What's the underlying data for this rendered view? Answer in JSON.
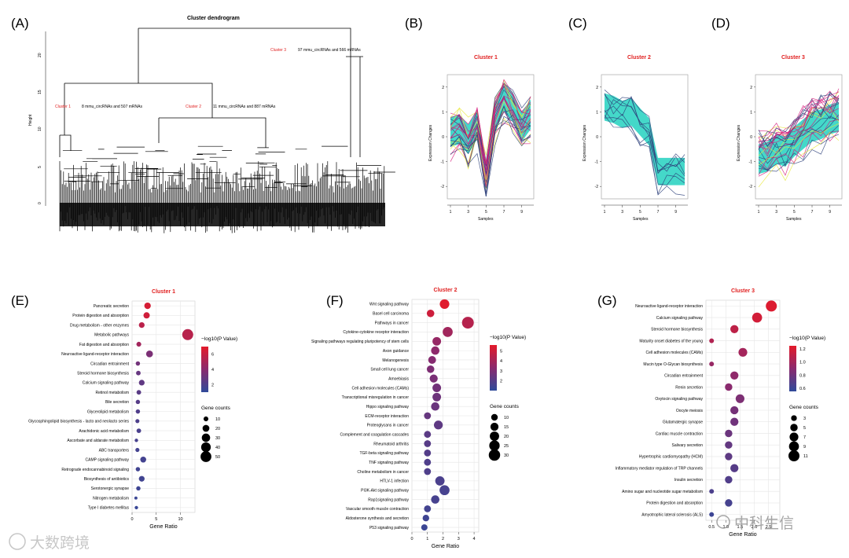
{
  "panel_labels": [
    "(A)",
    "(B)",
    "(C)",
    "(D)",
    "(E)",
    "(F)",
    "(G)"
  ],
  "dendrogram": {
    "title": "Cluster dendrogram",
    "ylabel": "Height",
    "yticks": [
      "0",
      "5",
      "10",
      "15",
      "20"
    ],
    "clusters": [
      {
        "name": "Cluster 1",
        "desc": "8 mmu_circRNAs and 507 mRNAs"
      },
      {
        "name": "Cluster 2",
        "desc": "11 mmu_circRNAs and 887 mRNAs"
      },
      {
        "name": "Cluster 3",
        "desc": "97 mmu_circRNAs and 566 mRNAs"
      }
    ]
  },
  "trend_panels": [
    {
      "title": "Cluster 1",
      "ylabel": "Expression Changes",
      "xlabel": "Samples"
    },
    {
      "title": "Cluster 2",
      "ylabel": "Expression Changes",
      "xlabel": "Samples"
    },
    {
      "title": "Cluster 3",
      "ylabel": "Expression Changes",
      "xlabel": "Samples"
    }
  ],
  "trend_xticks": [
    "1",
    "3",
    "5",
    "7",
    "9"
  ],
  "trend_yticks": [
    "-2",
    "-1",
    "0",
    "1",
    "2"
  ],
  "colors": {
    "cyan": "#3ad6c6",
    "magenta": "#d61a7b",
    "navy": "#2d3f7a",
    "yellow": "#e8e83a",
    "red": "#e01e1e"
  },
  "chart_data": [
    {
      "type": "scatter",
      "title": "Cluster 1",
      "xlabel": "Gene Ratio",
      "xticks": [
        "0",
        "5",
        "10"
      ],
      "xlim": [
        0,
        13
      ],
      "legend_color_title": "−log10(P Value)",
      "color_ticks": [
        "6",
        "4",
        "2"
      ],
      "color_range": [
        1,
        7
      ],
      "legend_size_title": "Gene counts",
      "size_ticks": [
        "10",
        "20",
        "30",
        "40",
        "50"
      ],
      "terms": [
        "Pancreatic secretion",
        "Protein digestion and absorption",
        "Drug metabolism - other enzymes",
        "Metabolic pathways",
        "Fat digestion and absorption",
        "Neuroactive ligand-receptor interaction",
        "Circadian entrainment",
        "Steroid hormone biosynthesis",
        "Calcium signaling pathway",
        "Retinol metabolism",
        "Bile secretion",
        "Glycerolipid metabolism",
        "Glycosphingolipid biosynthesis - lacto and neolacto series",
        "Arachidonic acid metabolism",
        "Ascorbate and aldarate metabolism",
        "ABC transporters",
        "CAMP signaling pathway",
        "Retrograde endocannabinoid signaling",
        "Biosynthesis of antibiotics",
        "Serotonergic synapse",
        "Nitrogen metabolism",
        "Type I diabetes mellitus"
      ],
      "ratio": [
        3.2,
        3.0,
        2.0,
        11.5,
        1.4,
        3.6,
        1.2,
        1.3,
        2.0,
        1.4,
        1.2,
        1.2,
        1.1,
        1.4,
        0.9,
        1.1,
        2.3,
        1.2,
        2.0,
        1.3,
        0.8,
        0.9
      ],
      "neglog10p": [
        6.5,
        6.3,
        5.6,
        5.5,
        4.8,
        3.5,
        3.2,
        2.8,
        2.6,
        2.4,
        2.3,
        2.1,
        2.0,
        1.9,
        1.8,
        1.7,
        1.7,
        1.6,
        1.6,
        1.5,
        1.4,
        1.3
      ],
      "counts": [
        18,
        17,
        14,
        52,
        10,
        20,
        8,
        9,
        14,
        9,
        8,
        8,
        7,
        9,
        5,
        7,
        15,
        8,
        14,
        8,
        4,
        5
      ]
    },
    {
      "type": "scatter",
      "title": "Cluster 2",
      "xlabel": "Gene Ratio",
      "xticks": [
        "0",
        "1",
        "2",
        "3",
        "4"
      ],
      "xlim": [
        0,
        4.3
      ],
      "legend_color_title": "−log10(P Value)",
      "color_ticks": [
        "5",
        "4",
        "3",
        "2"
      ],
      "color_range": [
        1,
        5.6
      ],
      "legend_size_title": "Gene counts",
      "size_ticks": [
        "10",
        "15",
        "20",
        "25",
        "30"
      ],
      "terms": [
        "Wnt signaling pathway",
        "Basel cell carcinoma",
        "Pathways in cancer",
        "Cytokine-cytokine receptor interaction",
        "Signaling pathways regulating pluripotency of stem cells",
        "Axon guidance",
        "Melanogenesis",
        "Small cell lung cancer",
        "Amoebiasis",
        "Cell adhesion molecules (CAMs)",
        "Transcriptional misregulation in cancer",
        "Hippo signaling pathway",
        "ECM-receptor interaction",
        "Proteoglycans in cancer",
        "Complement and coagulation cascades",
        "Rheumatoid arthritis",
        "TGF-beta signaling pathway",
        "TNF signaling pathway",
        "Choline metabolism in cancer",
        "HTLV-1 infection",
        "PI3K-Akt signaling pathway",
        "Rap1signaling pathway",
        "Vascular smooth muscle contraction",
        "Aldosterone synthesis and secretion",
        "P53 signaling pathway"
      ],
      "ratio": [
        2.1,
        1.2,
        3.6,
        2.3,
        1.6,
        1.5,
        1.3,
        1.2,
        1.4,
        1.6,
        1.6,
        1.5,
        1.0,
        1.7,
        1.0,
        1.0,
        1.0,
        1.0,
        1.0,
        1.8,
        2.1,
        1.5,
        1.0,
        0.9,
        0.8
      ],
      "neglog10p": [
        5.5,
        5.0,
        4.4,
        3.9,
        3.6,
        3.4,
        3.2,
        3.0,
        2.9,
        2.7,
        2.6,
        2.5,
        2.4,
        2.2,
        2.1,
        2.0,
        1.9,
        1.8,
        1.8,
        1.7,
        1.6,
        1.6,
        1.5,
        1.4,
        1.3
      ],
      "counts": [
        21,
        13,
        32,
        23,
        17,
        16,
        14,
        13,
        15,
        17,
        17,
        16,
        11,
        18,
        11,
        11,
        11,
        11,
        11,
        20,
        23,
        16,
        11,
        10,
        9
      ]
    },
    {
      "type": "scatter",
      "title": "Cluster 3",
      "xlabel": "Gene Ratio",
      "xticks": [
        "0.5",
        "1.0",
        "1.5",
        "2.0",
        "2.5"
      ],
      "xlim": [
        0.3,
        2.9
      ],
      "legend_color_title": "−log10(P Value)",
      "color_ticks": [
        "1.2",
        "1.0",
        "0.8",
        "0.6"
      ],
      "color_range": [
        0.55,
        1.25
      ],
      "legend_size_title": "Gene counts",
      "size_ticks": [
        "3",
        "5",
        "7",
        "9",
        "11"
      ],
      "terms": [
        "Neuroactive ligand-receptor interaction",
        "Calcium signaling pathway",
        "Steroid hormone biosynthesis",
        "Maturity onset diabetes of the young",
        "Cell adhesion molecules (CAMs)",
        "Mucin type O-Glycan biosynthesis",
        "Circadian entrainment",
        "Renin secretion",
        "Oxytocin signaling pathway",
        "Oocyte meiosis",
        "Glutamatergic synapse",
        "Cardiac muscle contraction",
        "Salivary secretion",
        "Hypertrophic cardiomyopathy (HCM)",
        "Inflammatory mediator regulation of TRP channels",
        "Insulin secretion",
        "Amino sugar and nucleotide sugar metabolism",
        "Protein digestion and absorption",
        "Amyotrophic lateral sclerosis (ALS)"
      ],
      "ratio": [
        2.6,
        2.1,
        1.3,
        0.5,
        1.6,
        0.5,
        1.3,
        1.1,
        1.5,
        1.3,
        1.3,
        1.1,
        1.1,
        1.1,
        1.3,
        1.1,
        0.5,
        1.1,
        0.5
      ],
      "neglog10p": [
        1.22,
        1.18,
        1.1,
        1.05,
        1.0,
        0.95,
        0.92,
        0.9,
        0.85,
        0.82,
        0.8,
        0.78,
        0.75,
        0.73,
        0.7,
        0.68,
        0.66,
        0.64,
        0.6
      ],
      "counts": [
        11,
        9,
        6,
        2,
        7,
        2,
        6,
        5,
        7,
        6,
        6,
        5,
        5,
        5,
        6,
        5,
        2,
        5,
        2
      ]
    }
  ],
  "watermarks": {
    "left": "大数跨境",
    "right": "中科生信"
  }
}
